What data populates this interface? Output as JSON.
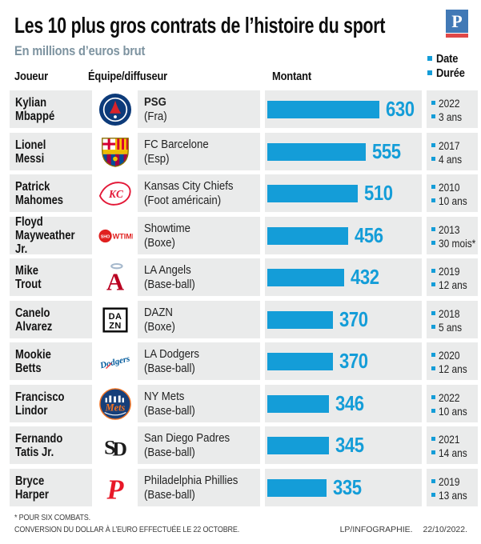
{
  "header": {
    "title": "Les 10 plus gros contrats de l’histoire du sport",
    "subtitle": "En millions d’euros brut",
    "brand_letter": "P",
    "legend": {
      "date_label": "Date",
      "duration_label": "Durée"
    },
    "columns": {
      "player": "Joueur",
      "team": "Équipe/diffuseur",
      "amount": "Montant"
    }
  },
  "chart_data": {
    "type": "bar",
    "title": "Les 10 plus gros contrats de l’histoire du sport",
    "unit": "En millions d’euros brut",
    "orientation": "horizontal",
    "xlim": [
      0,
      630
    ],
    "value_axis_hidden": true,
    "rows": [
      {
        "player": [
          "Kylian",
          "Mbappé"
        ],
        "team": "PSG",
        "team_bold": true,
        "sport": "(Fra)",
        "value": 630,
        "date": "2022",
        "duration": "3 ans",
        "logo": "psg"
      },
      {
        "player": [
          "Lionel",
          "Messi"
        ],
        "team": "FC Barcelone",
        "sport": "(Esp)",
        "value": 555,
        "date": "2017",
        "duration": "4 ans",
        "logo": "barcelona"
      },
      {
        "player": [
          "Patrick",
          "Mahomes"
        ],
        "team": "Kansas City Chiefs",
        "sport": "(Foot américain)",
        "value": 510,
        "date": "2010",
        "duration": "10 ans",
        "logo": "chiefs"
      },
      {
        "player": [
          "Floyd",
          "Mayweather Jr."
        ],
        "team": "Showtime",
        "sport": "(Boxe)",
        "value": 456,
        "date": "2013",
        "duration": "30 mois*",
        "logo": "showtime"
      },
      {
        "player": [
          "Mike",
          "Trout"
        ],
        "team": "LA Angels",
        "sport": "(Base-ball)",
        "value": 432,
        "date": "2019",
        "duration": "12 ans",
        "logo": "angels"
      },
      {
        "player": [
          "Canelo",
          "Alvarez"
        ],
        "team": "DAZN",
        "sport": "(Boxe)",
        "value": 370,
        "date": "2018",
        "duration": "5 ans",
        "logo": "dazn"
      },
      {
        "player": [
          "Mookie",
          "Betts"
        ],
        "team": "LA Dodgers",
        "sport": "(Base-ball)",
        "value": 370,
        "date": "2020",
        "duration": "12 ans",
        "logo": "dodgers"
      },
      {
        "player": [
          "Francisco",
          "Lindor"
        ],
        "team": "NY Mets",
        "sport": "(Base-ball)",
        "value": 346,
        "date": "2022",
        "duration": "10 ans",
        "logo": "mets"
      },
      {
        "player": [
          "Fernando",
          "Tatis Jr."
        ],
        "team": "San Diego Padres",
        "sport": "(Base-ball)",
        "value": 345,
        "date": "2021",
        "duration": "14 ans",
        "logo": "padres"
      },
      {
        "player": [
          "Bryce",
          "Harper"
        ],
        "team": "Philadelphia Phillies",
        "sport": "(Base-ball)",
        "value": 335,
        "date": "2019",
        "duration": "13 ans",
        "logo": "phillies"
      }
    ]
  },
  "footer": {
    "note1": "* POUR SIX COMBATS.",
    "note2": "CONVERSION DU DOLLAR À L’EURO EFFECTUÉE LE 22 OCTOBRE.",
    "credit_left": "LP/INFOGRAPHIE.",
    "credit_date": "22/10/2022."
  },
  "colors": {
    "accent_blue": "#149dd8",
    "row_background": "#eaebeb",
    "subtitle_gray_blue": "#7d93a0",
    "brand_blue": "#4179b6",
    "brand_red": "#e04848"
  }
}
